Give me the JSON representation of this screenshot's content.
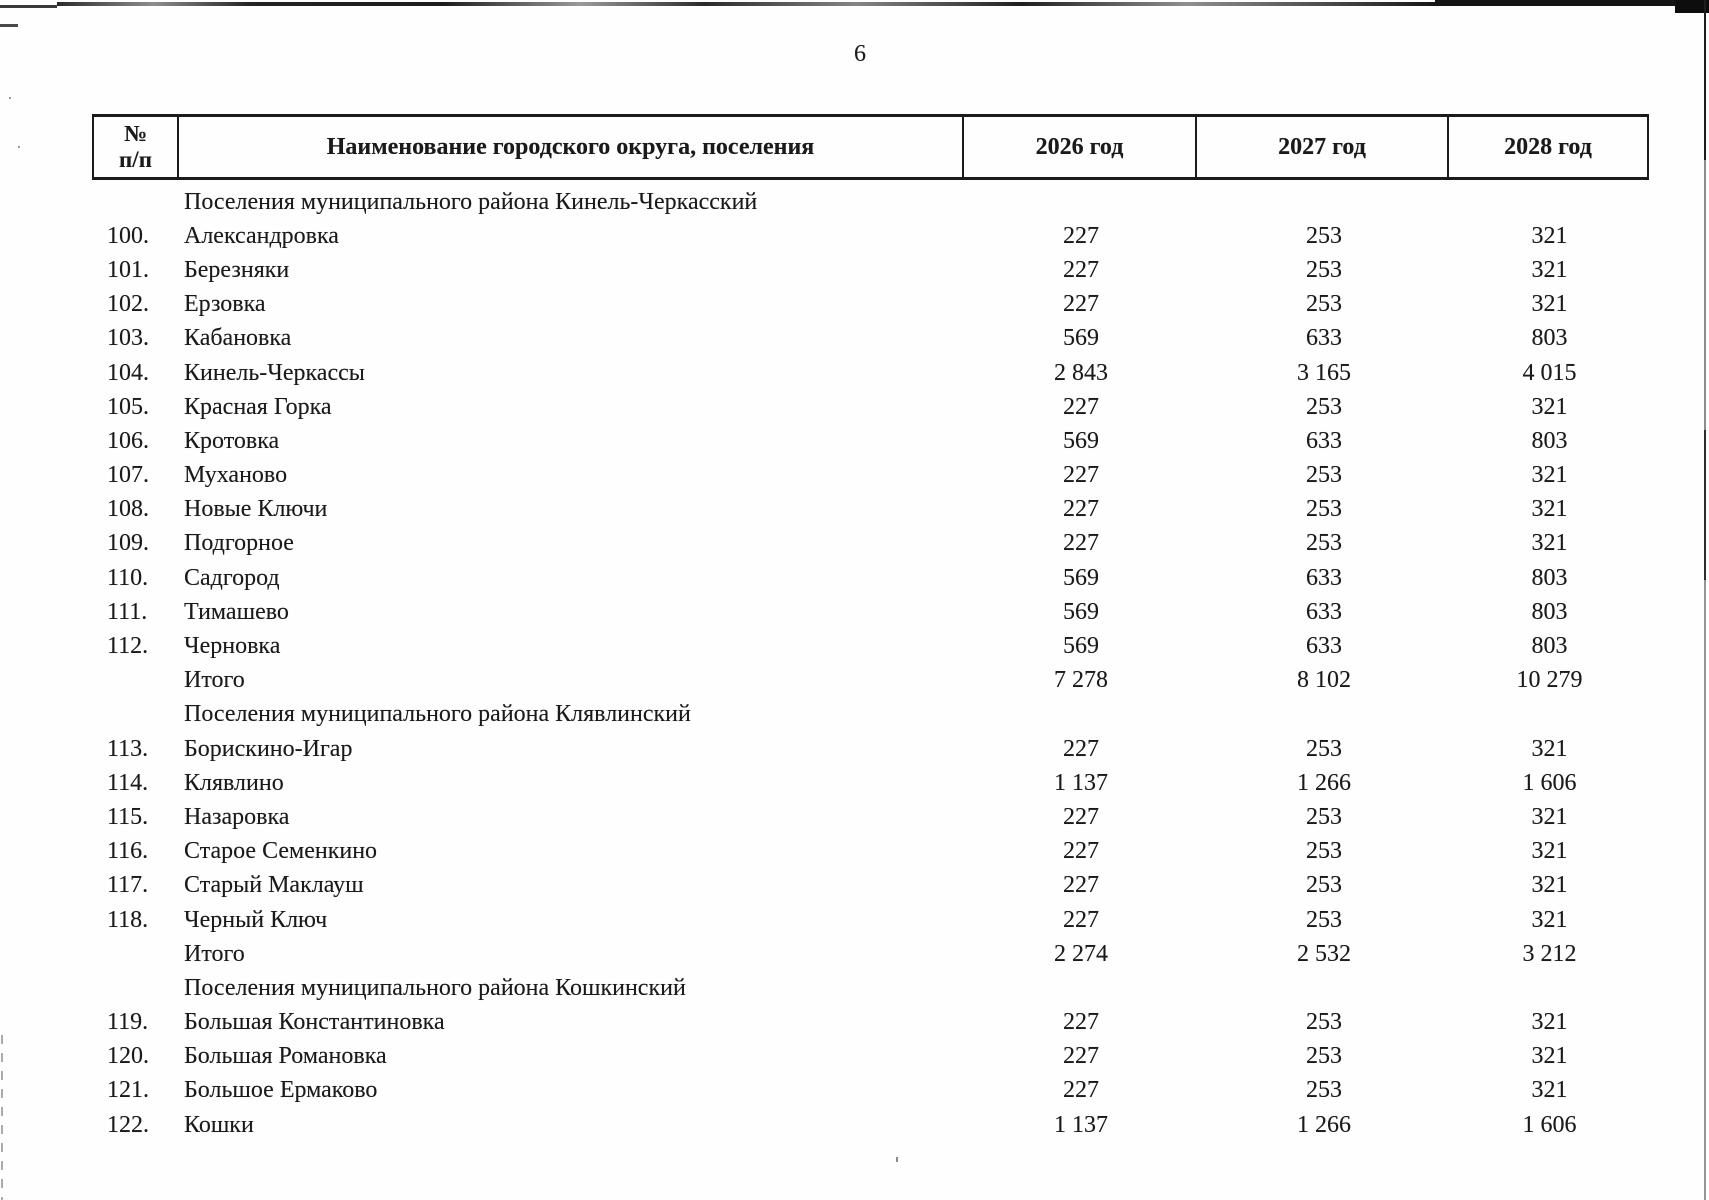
{
  "page": {
    "number": "6"
  },
  "table": {
    "header": {
      "no_line1": "№",
      "no_line2": "п/п",
      "name": "Наименование городского округа, поселения",
      "y2026": "2026 год",
      "y2027": "2027 год",
      "y2028": "2028 год"
    },
    "rows": [
      {
        "type": "section",
        "num": "",
        "name": "Поселения муниципального района Кинель-Черкасский",
        "y2026": "",
        "y2027": "",
        "y2028": ""
      },
      {
        "type": "data",
        "num": "100.",
        "name": "Александровка",
        "y2026": "227",
        "y2027": "253",
        "y2028": "321"
      },
      {
        "type": "data",
        "num": "101.",
        "name": "Березняки",
        "y2026": "227",
        "y2027": "253",
        "y2028": "321"
      },
      {
        "type": "data",
        "num": "102.",
        "name": "Ерзовка",
        "y2026": "227",
        "y2027": "253",
        "y2028": "321"
      },
      {
        "type": "data",
        "num": "103.",
        "name": "Кабановка",
        "y2026": "569",
        "y2027": "633",
        "y2028": "803"
      },
      {
        "type": "data",
        "num": "104.",
        "name": "Кинель-Черкассы",
        "y2026": "2 843",
        "y2027": "3 165",
        "y2028": "4 015"
      },
      {
        "type": "data",
        "num": "105.",
        "name": "Красная Горка",
        "y2026": "227",
        "y2027": "253",
        "y2028": "321"
      },
      {
        "type": "data",
        "num": "106.",
        "name": "Кротовка",
        "y2026": "569",
        "y2027": "633",
        "y2028": "803"
      },
      {
        "type": "data",
        "num": "107.",
        "name": "Муханово",
        "y2026": "227",
        "y2027": "253",
        "y2028": "321"
      },
      {
        "type": "data",
        "num": "108.",
        "name": "Новые Ключи",
        "y2026": "227",
        "y2027": "253",
        "y2028": "321"
      },
      {
        "type": "data",
        "num": "109.",
        "name": "Подгорное",
        "y2026": "227",
        "y2027": "253",
        "y2028": "321"
      },
      {
        "type": "data",
        "num": "110.",
        "name": "Садгород",
        "y2026": "569",
        "y2027": "633",
        "y2028": "803"
      },
      {
        "type": "data",
        "num": "111.",
        "name": "Тимашево",
        "y2026": "569",
        "y2027": "633",
        "y2028": "803"
      },
      {
        "type": "data",
        "num": "112.",
        "name": "Черновка",
        "y2026": "569",
        "y2027": "633",
        "y2028": "803"
      },
      {
        "type": "total",
        "num": "",
        "name": "Итого",
        "y2026": "7 278",
        "y2027": "8 102",
        "y2028": "10 279"
      },
      {
        "type": "section",
        "num": "",
        "name": "Поселения муниципального района Клявлинский",
        "y2026": "",
        "y2027": "",
        "y2028": ""
      },
      {
        "type": "data",
        "num": "113.",
        "name": "Борискино-Игар",
        "y2026": "227",
        "y2027": "253",
        "y2028": "321"
      },
      {
        "type": "data",
        "num": "114.",
        "name": "Клявлино",
        "y2026": "1 137",
        "y2027": "1 266",
        "y2028": "1 606"
      },
      {
        "type": "data",
        "num": "115.",
        "name": "Назаровка",
        "y2026": "227",
        "y2027": "253",
        "y2028": "321"
      },
      {
        "type": "data",
        "num": "116.",
        "name": "Старое Семенкино",
        "y2026": "227",
        "y2027": "253",
        "y2028": "321"
      },
      {
        "type": "data",
        "num": "117.",
        "name": "Старый Маклауш",
        "y2026": "227",
        "y2027": "253",
        "y2028": "321"
      },
      {
        "type": "data",
        "num": "118.",
        "name": "Черный Ключ",
        "y2026": "227",
        "y2027": "253",
        "y2028": "321"
      },
      {
        "type": "total",
        "num": "",
        "name": "Итого",
        "y2026": "2 274",
        "y2027": "2 532",
        "y2028": "3 212"
      },
      {
        "type": "section",
        "num": "",
        "name": "Поселения муниципального района Кошкинский",
        "y2026": "",
        "y2027": "",
        "y2028": ""
      },
      {
        "type": "data",
        "num": "119.",
        "name": "Большая Константиновка",
        "y2026": "227",
        "y2027": "253",
        "y2028": "321"
      },
      {
        "type": "data",
        "num": "120.",
        "name": "Большая Романовка",
        "y2026": "227",
        "y2027": "253",
        "y2028": "321"
      },
      {
        "type": "data",
        "num": "121.",
        "name": "Большое Ермаково",
        "y2026": "227",
        "y2027": "253",
        "y2028": "321"
      },
      {
        "type": "data",
        "num": "122.",
        "name": "Кошки",
        "y2026": "1 137",
        "y2027": "1 266",
        "y2028": "1 606"
      }
    ]
  }
}
